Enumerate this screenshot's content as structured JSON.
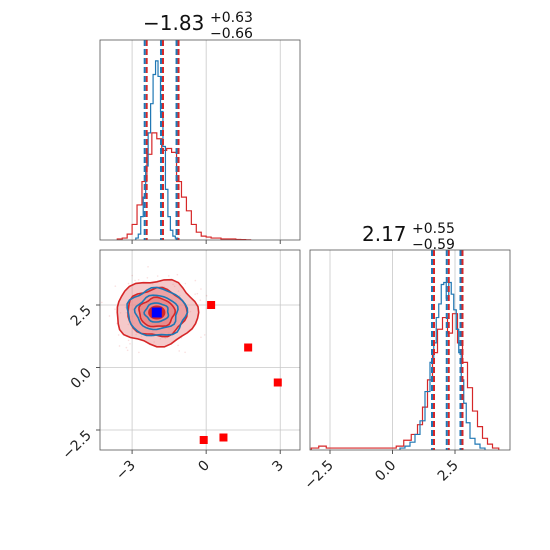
{
  "colors": {
    "blue": "#1f77b4",
    "red": "#d62728",
    "red_fill": "#e8888a",
    "marker_red": "#ff0000",
    "marker_blue": "#0000ff",
    "grid": "#c8c8c8"
  },
  "titles": [
    {
      "value": "−1.83",
      "plus": "+0.63",
      "minus": "−0.66"
    },
    {
      "value": "2.17",
      "plus": "+0.55",
      "minus": "−0.59"
    }
  ],
  "chart_data": {
    "type": "corner",
    "param1": {
      "range": [
        -4.3,
        3.8
      ],
      "ticks": [
        -3,
        0,
        3
      ],
      "tick_labels": [
        "−3",
        "0",
        "3"
      ],
      "quantile_lines": [
        -2.49,
        -1.83,
        -1.2
      ],
      "hist_blue": {
        "bins": [
          -2.8,
          -2.7,
          -2.6,
          -2.5,
          -2.4,
          -2.3,
          -2.2,
          -2.1,
          -2.0,
          -1.9,
          -1.8,
          -1.7,
          -1.6,
          -1.5,
          -1.4,
          -1.3,
          -1.2
        ],
        "values": [
          0.01,
          0.03,
          0.12,
          0.22,
          0.38,
          0.55,
          0.7,
          0.85,
          0.92,
          0.84,
          0.66,
          0.48,
          0.26,
          0.12,
          0.05,
          0.02,
          0.01
        ]
      },
      "hist_red": {
        "bins": [
          -3.5,
          -3.3,
          -3.1,
          -2.9,
          -2.7,
          -2.5,
          -2.3,
          -2.1,
          -1.9,
          -1.7,
          -1.5,
          -1.3,
          -1.1,
          -0.9,
          -0.7,
          -0.5,
          -0.3,
          -0.1,
          0.1,
          0.3,
          0.5,
          0.7,
          0.9,
          1.1,
          1.3,
          1.5,
          1.7
        ],
        "values": [
          0.005,
          0.01,
          0.03,
          0.08,
          0.18,
          0.3,
          0.44,
          0.55,
          0.52,
          0.46,
          0.47,
          0.45,
          0.3,
          0.22,
          0.15,
          0.08,
          0.04,
          0.02,
          0.015,
          0.01,
          0.01,
          0.005,
          0.005,
          0.005,
          0.003,
          0.002,
          0.001
        ]
      }
    },
    "param2": {
      "range": [
        -3.3,
        4.7
      ],
      "ticks": [
        -2.5,
        0.0,
        2.5
      ],
      "tick_labels": [
        "−2.5",
        "0.0",
        "2.5"
      ],
      "quantile_lines": [
        1.58,
        2.17,
        2.72
      ],
      "hist_blue": {
        "bins": [
          0.4,
          0.6,
          0.8,
          1.0,
          1.2,
          1.4,
          1.6,
          1.7,
          1.8,
          1.9,
          2.0,
          2.1,
          2.2,
          2.3,
          2.4,
          2.5,
          2.6,
          2.7,
          2.8,
          2.9,
          3.0,
          3.2,
          3.4,
          3.6
        ],
        "values": [
          0.01,
          0.02,
          0.04,
          0.08,
          0.15,
          0.3,
          0.45,
          0.55,
          0.68,
          0.75,
          0.85,
          0.86,
          0.78,
          0.86,
          0.8,
          0.72,
          0.62,
          0.5,
          0.36,
          0.24,
          0.14,
          0.06,
          0.03,
          0.01
        ]
      },
      "hist_red": {
        "bins": [
          -3.1,
          -2.8,
          -2.5,
          -2.2,
          0.0,
          0.3,
          0.6,
          0.9,
          1.1,
          1.3,
          1.5,
          1.7,
          1.9,
          2.1,
          2.3,
          2.5,
          2.7,
          2.9,
          3.1,
          3.3,
          3.5,
          3.7,
          3.9,
          4.1
        ],
        "values": [
          0.01,
          0.02,
          0.01,
          0.01,
          0.01,
          0.02,
          0.05,
          0.08,
          0.13,
          0.22,
          0.36,
          0.5,
          0.62,
          0.68,
          0.6,
          0.7,
          0.55,
          0.45,
          0.32,
          0.2,
          0.12,
          0.06,
          0.03,
          0.01
        ]
      }
    },
    "scatter": {
      "red_points": [
        {
          "x": 0.2,
          "y": 2.5
        },
        {
          "x": 1.7,
          "y": 0.8
        },
        {
          "x": 2.9,
          "y": -0.6
        },
        {
          "x": 0.7,
          "y": -2.8
        },
        {
          "x": -0.1,
          "y": -2.9
        }
      ],
      "blue_point": {
        "x": -2.0,
        "y": 2.2
      },
      "contour_center": {
        "x": -2.0,
        "y": 2.2
      },
      "red_contour_radii": [
        [
          1.65,
          1.3
        ],
        [
          1.2,
          0.95
        ],
        [
          0.72,
          0.58
        ]
      ],
      "blue_contour_radii": [
        [
          1.2,
          0.95
        ],
        [
          0.85,
          0.68
        ],
        [
          0.48,
          0.38
        ]
      ]
    },
    "grid": true
  }
}
